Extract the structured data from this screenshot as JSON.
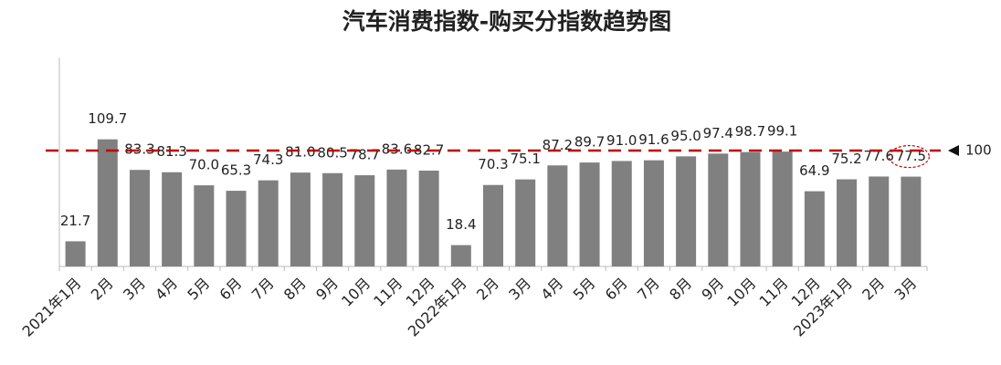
{
  "chart_data": {
    "type": "bar",
    "title": "汽车消费指数-购买分指数趋势图",
    "categories": [
      "2021年1月",
      "2月",
      "3月",
      "4月",
      "5月",
      "6月",
      "7月",
      "8月",
      "9月",
      "10月",
      "11月",
      "12月",
      "2022年1月",
      "2月",
      "3月",
      "4月",
      "5月",
      "6月",
      "7月",
      "8月",
      "9月",
      "10月",
      "11月",
      "12月",
      "2023年1月",
      "2月",
      "3月"
    ],
    "values": [
      21.7,
      109.7,
      83.3,
      81.3,
      70.0,
      65.3,
      74.3,
      81.0,
      80.5,
      78.7,
      83.6,
      82.7,
      18.4,
      70.3,
      75.1,
      87.2,
      89.7,
      91.0,
      91.6,
      95.0,
      97.4,
      98.7,
      99.1,
      64.9,
      75.2,
      77.6,
      77.5
    ],
    "value_labels": [
      "21.7",
      "109.7",
      "83.3",
      "81.3",
      "70.0",
      "65.3",
      "74.3",
      "81.0",
      "80.5",
      "78.7",
      "83.6",
      "82.7",
      "18.4",
      "70.3",
      "75.1",
      "87.2",
      "89.7",
      "91.0",
      "91.6",
      "95.0",
      "97.4",
      "98.7",
      "99.1",
      "64.9",
      "75.2",
      "77.6",
      "77.5"
    ],
    "color": "#808080",
    "ylim": [
      0,
      180
    ],
    "reference_line": 100,
    "reference_color": "#c00000"
  }
}
